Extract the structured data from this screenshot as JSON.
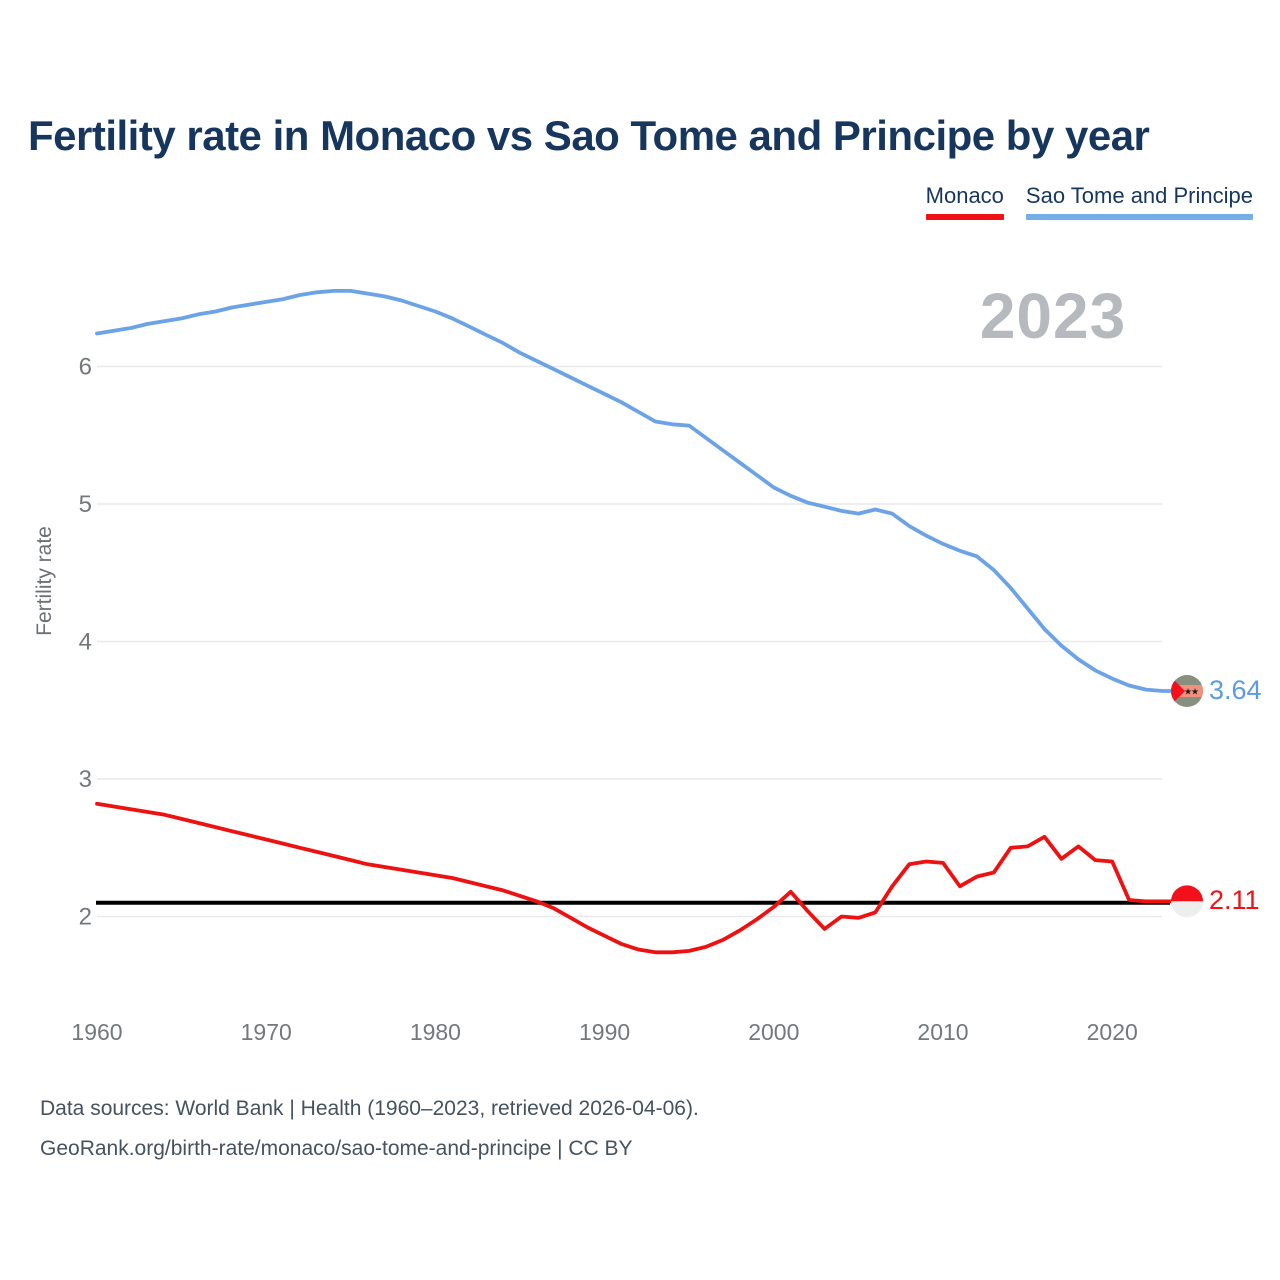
{
  "title": "Fertility rate in Monaco vs Sao Tome and Principe by year",
  "watermark": "2023",
  "legend": [
    {
      "label": "Monaco",
      "color": "#f01114"
    },
    {
      "label": "Sao Tome and Principe",
      "color": "#74aee8"
    }
  ],
  "footer": {
    "line1": "Data sources: World Bank | Health (1960–2023, retrieved 2026-04-06).",
    "line2": "GeoRank.org/birth-rate/monaco/sao-tome-and-principe | CC BY"
  },
  "chart_data": {
    "type": "line",
    "title": "Fertility rate in Monaco vs Sao Tome and Principe by year",
    "xlabel": "",
    "ylabel": "Fertility rate",
    "grid": "horizontal-only",
    "legend_position": "top-right",
    "ylim": [
      1.5,
      6.8
    ],
    "yticks": [
      2,
      3,
      4,
      5,
      6
    ],
    "xticks": [
      1960,
      1970,
      1980,
      1990,
      2000,
      2010,
      2020
    ],
    "x": [
      1960,
      1961,
      1962,
      1963,
      1964,
      1965,
      1966,
      1967,
      1968,
      1969,
      1970,
      1971,
      1972,
      1973,
      1974,
      1975,
      1976,
      1977,
      1978,
      1979,
      1980,
      1981,
      1982,
      1983,
      1984,
      1985,
      1986,
      1987,
      1988,
      1989,
      1990,
      1991,
      1992,
      1993,
      1994,
      1995,
      1996,
      1997,
      1998,
      1999,
      2000,
      2001,
      2002,
      2003,
      2004,
      2005,
      2006,
      2007,
      2008,
      2009,
      2010,
      2011,
      2012,
      2013,
      2014,
      2015,
      2016,
      2017,
      2018,
      2019,
      2020,
      2021,
      2022,
      2023
    ],
    "series": [
      {
        "name": "Sao Tome and Principe",
        "color": "#6ba3e6",
        "values": [
          6.24,
          6.26,
          6.28,
          6.31,
          6.33,
          6.35,
          6.38,
          6.4,
          6.43,
          6.45,
          6.47,
          6.49,
          6.52,
          6.54,
          6.55,
          6.55,
          6.53,
          6.51,
          6.48,
          6.44,
          6.4,
          6.35,
          6.29,
          6.23,
          6.17,
          6.1,
          6.04,
          5.98,
          5.92,
          5.86,
          5.8,
          5.74,
          5.67,
          5.6,
          5.58,
          5.57,
          5.48,
          5.39,
          5.3,
          5.21,
          5.12,
          5.06,
          5.01,
          4.98,
          4.95,
          4.93,
          4.96,
          4.93,
          4.84,
          4.77,
          4.71,
          4.66,
          4.62,
          4.52,
          4.39,
          4.24,
          4.09,
          3.97,
          3.87,
          3.79,
          3.73,
          3.68,
          3.65,
          3.64
        ]
      },
      {
        "name": "Monaco",
        "color": "#ee1111",
        "values": [
          2.82,
          2.8,
          2.78,
          2.76,
          2.74,
          2.71,
          2.68,
          2.65,
          2.62,
          2.59,
          2.56,
          2.53,
          2.5,
          2.47,
          2.44,
          2.41,
          2.38,
          2.36,
          2.34,
          2.32,
          2.3,
          2.28,
          2.25,
          2.22,
          2.19,
          2.15,
          2.11,
          2.06,
          1.99,
          1.92,
          1.86,
          1.8,
          1.76,
          1.74,
          1.74,
          1.75,
          1.78,
          1.83,
          1.9,
          1.98,
          2.07,
          2.18,
          2.04,
          1.91,
          2.0,
          1.99,
          2.03,
          2.22,
          2.38,
          2.4,
          2.39,
          2.22,
          2.29,
          2.32,
          2.5,
          2.51,
          2.58,
          2.42,
          2.51,
          2.41,
          2.4,
          2.12,
          2.11,
          2.11
        ]
      }
    ],
    "reference_line": {
      "value": 2.1,
      "color": "#000000"
    },
    "end_labels": [
      {
        "series": "Sao Tome and Principe",
        "value": "3.64",
        "color": "#5b9be2",
        "flag": "sao-tome-and-principe"
      },
      {
        "series": "Monaco",
        "value": "2.11",
        "color": "#f01114",
        "flag": "monaco"
      }
    ],
    "flag_colors": {
      "sao_tome": {
        "body": "#87907e",
        "band": "#f0907d",
        "triangle": "#f2101a",
        "stars": "#1c1c1c"
      },
      "monaco": {
        "top": "#f2101a",
        "bottom": "#eeeeee"
      }
    },
    "axis_text_color": "#74787d",
    "gridline_color": "#e9e9e9"
  }
}
